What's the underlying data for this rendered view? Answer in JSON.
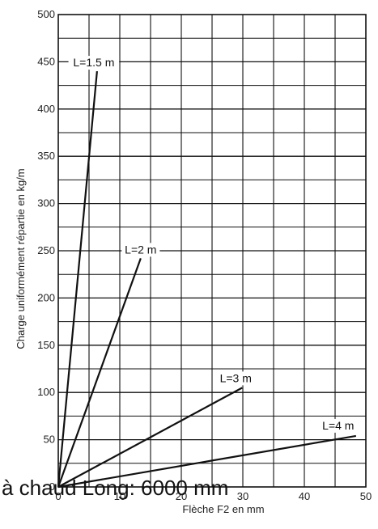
{
  "chart_data": {
    "type": "line",
    "title": "",
    "xlabel": "Flèche F2 en mm",
    "ylabel": "Charge uniformément répartie en kg/m",
    "xlim": [
      0,
      50
    ],
    "ylim": [
      0,
      500
    ],
    "x_ticks": [
      0,
      10,
      20,
      30,
      40,
      50
    ],
    "y_ticks": [
      0,
      50,
      100,
      150,
      200,
      250,
      300,
      350,
      400,
      450,
      500
    ],
    "grid": true,
    "series": [
      {
        "name": "L=1.5 m",
        "x": [
          0,
          6.3
        ],
        "y": [
          0,
          440
        ]
      },
      {
        "name": "L=2 m",
        "x": [
          0,
          13.4
        ],
        "y": [
          0,
          242
        ]
      },
      {
        "name": "L=3 m",
        "x": [
          0,
          29.9
        ],
        "y": [
          0,
          105
        ]
      },
      {
        "name": "L=4 m",
        "x": [
          0,
          48.4
        ],
        "y": [
          0,
          54
        ]
      }
    ]
  },
  "overlay_text": "à chaud Long: 6000 mm"
}
